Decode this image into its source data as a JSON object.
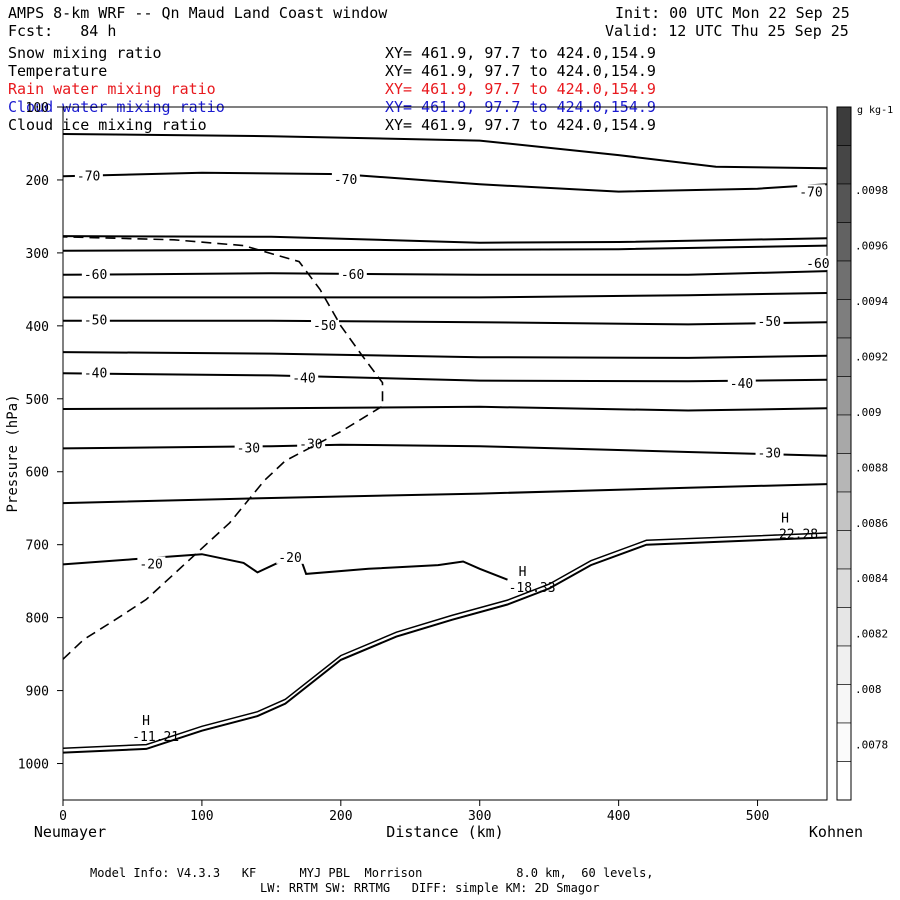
{
  "header": {
    "title": "AMPS 8-km WRF -- Qn Maud Land Coast window",
    "init": "Init: 00 UTC Mon 22 Sep 25",
    "fcst": "Fcst:   84 h",
    "valid": "Valid: 12 UTC Thu 25 Sep 25"
  },
  "legend": [
    {
      "name": "Snow mixing ratio",
      "xy": "XY= 461.9, 97.7 to 424.0,154.9",
      "color": "#000000"
    },
    {
      "name": "Temperature",
      "xy": "XY= 461.9, 97.7 to 424.0,154.9",
      "color": "#000000"
    },
    {
      "name": "Rain water mixing ratio",
      "xy": "XY= 461.9, 97.7 to 424.0,154.9",
      "color": "#e8191e"
    },
    {
      "name": "Cloud water mixing ratio",
      "xy": "XY= 461.9, 97.7 to 424.0,154.9",
      "color": "#1a1ad0"
    },
    {
      "name": "Cloud ice mixing ratio",
      "xy": "XY= 461.9, 97.7 to 424.0,154.9",
      "color": "#000000"
    }
  ],
  "footer": {
    "line1": "Model Info: V4.3.3   KF      MYJ PBL  Morrison             8.0 km,  60 levels,",
    "line2": "LW: RRTM SW: RRTMG   DIFF: simple KM: 2D Smagor"
  },
  "chart_data": {
    "type": "line",
    "title": "AMPS 8-km WRF -- Qn Maud Land Coast window",
    "xlabel": "Distance (km)",
    "ylabel": "Pressure (hPa)",
    "xlim": [
      0,
      550
    ],
    "ylim": [
      1050,
      100
    ],
    "x_ticks": [
      0,
      100,
      200,
      300,
      400,
      500
    ],
    "y_ticks": [
      100,
      200,
      300,
      400,
      500,
      600,
      700,
      800,
      900,
      1000
    ],
    "x_tick_labels": [
      "0",
      "100",
      "200",
      "300",
      "400",
      "500"
    ],
    "y_tick_labels": [
      "100",
      "200",
      "300",
      "400",
      "500",
      "600",
      "700",
      "800",
      "900",
      "1000"
    ],
    "x_start_label": "Neumayer",
    "x_end_label": "Kohnen",
    "colorbar": {
      "unit": "g kg-1",
      "ticks": [
        ".0098",
        ".0096",
        ".0094",
        ".0092",
        ".009",
        ".0088",
        ".0086",
        ".0084",
        ".0082",
        ".008",
        ".0078"
      ],
      "shades": [
        "#3c3c3c",
        "#464646",
        "#555555",
        "#626262",
        "#707070",
        "#7e7e7e",
        "#8c8c8c",
        "#9a9a9a",
        "#a8a8a8",
        "#b6b6b6",
        "#c4c4c4",
        "#d0d0d0",
        "#dcdcdc",
        "#e6e6e6",
        "#f0f0f0",
        "#f7f7f7",
        "#fbfbfb",
        "#ffffff"
      ]
    },
    "isotherms": [
      {
        "points": [
          [
            0,
            137
          ],
          [
            150,
            140
          ],
          [
            300,
            146
          ],
          [
            400,
            166
          ],
          [
            470,
            182
          ],
          [
            550,
            184
          ]
        ]
      },
      {
        "points": [
          [
            0,
            195
          ],
          [
            100,
            190
          ],
          [
            200,
            192
          ],
          [
            300,
            206
          ],
          [
            400,
            216
          ],
          [
            500,
            212
          ],
          [
            550,
            206
          ]
        ],
        "label": "-70",
        "label_at": [
          [
            10,
            195
          ],
          [
            195,
            200
          ],
          [
            530,
            217
          ]
        ]
      },
      {
        "points": [
          [
            0,
            277
          ],
          [
            150,
            278
          ],
          [
            300,
            286
          ],
          [
            400,
            285
          ],
          [
            550,
            280
          ]
        ]
      },
      {
        "points": [
          [
            0,
            297
          ],
          [
            150,
            296
          ],
          [
            250,
            296
          ],
          [
            400,
            295
          ],
          [
            550,
            290
          ]
        ]
      },
      {
        "points": [
          [
            0,
            330
          ],
          [
            150,
            328
          ],
          [
            300,
            330
          ],
          [
            450,
            330
          ],
          [
            550,
            325
          ]
        ],
        "label": "-60",
        "label_at": [
          [
            15,
            330
          ],
          [
            200,
            330
          ],
          [
            535,
            315
          ]
        ]
      },
      {
        "points": [
          [
            0,
            361
          ],
          [
            150,
            361
          ],
          [
            300,
            361
          ],
          [
            450,
            358
          ],
          [
            550,
            355
          ]
        ]
      },
      {
        "points": [
          [
            0,
            393
          ],
          [
            150,
            393
          ],
          [
            300,
            395
          ],
          [
            450,
            398
          ],
          [
            550,
            395
          ]
        ],
        "label": "-50",
        "label_at": [
          [
            15,
            393
          ],
          [
            180,
            400
          ],
          [
            500,
            395
          ]
        ]
      },
      {
        "points": [
          [
            0,
            436
          ],
          [
            150,
            438
          ],
          [
            300,
            443
          ],
          [
            450,
            444
          ],
          [
            550,
            441
          ]
        ]
      },
      {
        "points": [
          [
            0,
            465
          ],
          [
            150,
            468
          ],
          [
            300,
            475
          ],
          [
            450,
            476
          ],
          [
            550,
            474
          ]
        ],
        "label": "-40",
        "label_at": [
          [
            15,
            465
          ],
          [
            165,
            472
          ],
          [
            480,
            480
          ]
        ]
      },
      {
        "points": [
          [
            0,
            514
          ],
          [
            150,
            513
          ],
          [
            300,
            511
          ],
          [
            450,
            516
          ],
          [
            550,
            513
          ]
        ]
      },
      {
        "points": [
          [
            0,
            568
          ],
          [
            150,
            565
          ],
          [
            200,
            563
          ],
          [
            300,
            565
          ],
          [
            450,
            573
          ],
          [
            550,
            578
          ]
        ],
        "label": "-30",
        "label_at": [
          [
            125,
            568
          ],
          [
            170,
            563
          ],
          [
            500,
            575
          ]
        ]
      },
      {
        "points": [
          [
            0,
            643
          ],
          [
            150,
            636
          ],
          [
            300,
            630
          ],
          [
            450,
            622
          ],
          [
            550,
            617
          ]
        ]
      },
      {
        "points": [
          [
            0,
            727
          ],
          [
            50,
            720
          ],
          [
            100,
            713
          ],
          [
            130,
            725
          ],
          [
            140,
            738
          ],
          [
            160,
            720
          ],
          [
            170,
            713
          ],
          [
            175,
            740
          ],
          [
            220,
            733
          ],
          [
            270,
            728
          ],
          [
            288,
            723
          ],
          [
            300,
            733
          ],
          [
            320,
            748
          ]
        ],
        "label": "-20",
        "label_at": [
          [
            55,
            727
          ],
          [
            155,
            718
          ]
        ]
      }
    ],
    "h_labels": [
      {
        "x": 57,
        "p": 950,
        "label": "H",
        "value": "-11.21"
      },
      {
        "x": 328,
        "p": 746,
        "label": "H",
        "value": "-18.33"
      },
      {
        "x": 517,
        "p": 672,
        "label": "H",
        "value": "-22.28"
      }
    ],
    "terrain": [
      [
        0,
        985
      ],
      [
        60,
        980
      ],
      [
        100,
        955
      ],
      [
        140,
        935
      ],
      [
        160,
        918
      ],
      [
        200,
        858
      ],
      [
        240,
        826
      ],
      [
        280,
        803
      ],
      [
        320,
        782
      ],
      [
        350,
        760
      ],
      [
        380,
        728
      ],
      [
        420,
        700
      ],
      [
        550,
        690
      ]
    ],
    "snow_dashed": [
      [
        0,
        857
      ],
      [
        15,
        830
      ],
      [
        40,
        800
      ],
      [
        60,
        775
      ],
      [
        80,
        740
      ],
      [
        100,
        705
      ],
      [
        120,
        670
      ],
      [
        145,
        612
      ],
      [
        160,
        585
      ],
      [
        185,
        560
      ],
      [
        200,
        545
      ],
      [
        230,
        510
      ],
      [
        230,
        478
      ],
      [
        215,
        440
      ],
      [
        200,
        400
      ],
      [
        185,
        350
      ],
      [
        170,
        312
      ],
      [
        130,
        290
      ],
      [
        80,
        282
      ],
      [
        0,
        278
      ]
    ]
  }
}
